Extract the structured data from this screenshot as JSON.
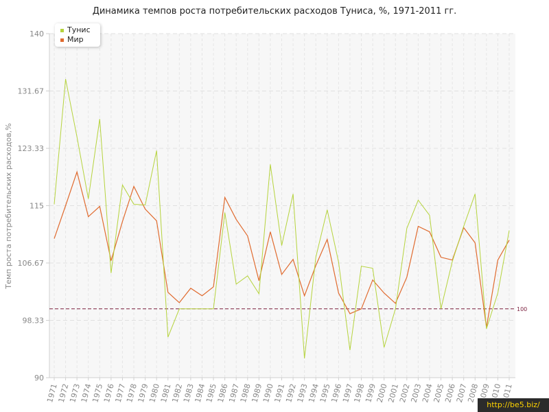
{
  "chart_data": {
    "type": "line",
    "title": "Динамика темпов роста потребительских расходов Туниса, %, 1971-2011 гг.",
    "xlabel": "",
    "ylabel": "Темп роста потребительских расходов,%",
    "ylim": [
      90,
      140
    ],
    "yticks": [
      "90",
      "98.33",
      "106.67",
      "115",
      "123.33",
      "131.67",
      "140"
    ],
    "x": [
      1971,
      1972,
      1973,
      1974,
      1975,
      1976,
      1977,
      1978,
      1979,
      1980,
      1981,
      1982,
      1983,
      1984,
      1985,
      1986,
      1987,
      1988,
      1989,
      1990,
      1991,
      1992,
      1993,
      1994,
      1995,
      1996,
      1997,
      1998,
      1999,
      2000,
      2001,
      2002,
      2003,
      2004,
      2005,
      2006,
      2007,
      2008,
      2009,
      2010,
      2011
    ],
    "series": [
      {
        "name": "Тунис",
        "color": "#b5d33c",
        "values": [
          115.2,
          133.4,
          125.0,
          116.0,
          127.6,
          105.2,
          118.0,
          115.2,
          115.1,
          123.0,
          95.9,
          100.0,
          100.0,
          100.0,
          100.0,
          114.0,
          103.6,
          104.8,
          102.2,
          121.0,
          109.2,
          116.7,
          92.8,
          107.5,
          114.4,
          106.8,
          94.0,
          106.2,
          105.9,
          94.4,
          100.0,
          111.7,
          115.8,
          113.6,
          100.0,
          106.9,
          112.0,
          116.7,
          97.1,
          102.3,
          111.4
        ],
        "mode": "line"
      },
      {
        "name": "Мир",
        "color": "#e06a2e",
        "values": [
          110.2,
          115.0,
          119.9,
          113.4,
          114.9,
          107.0,
          112.7,
          117.8,
          114.5,
          112.8,
          102.4,
          100.9,
          103.0,
          101.9,
          103.2,
          116.2,
          113.0,
          110.6,
          104.1,
          111.2,
          105.0,
          107.2,
          101.9,
          106.3,
          110.1,
          102.3,
          99.3,
          100.0,
          104.2,
          102.3,
          100.8,
          104.6,
          112.0,
          111.2,
          107.5,
          107.1,
          111.8,
          109.6,
          97.3,
          107.1,
          110.0
        ]
      }
    ],
    "reference_line": {
      "value": 100,
      "label": "100",
      "color": "#7a1f3d"
    },
    "grid": true,
    "legend": "top-left"
  },
  "watermark": "http://be5.biz/"
}
